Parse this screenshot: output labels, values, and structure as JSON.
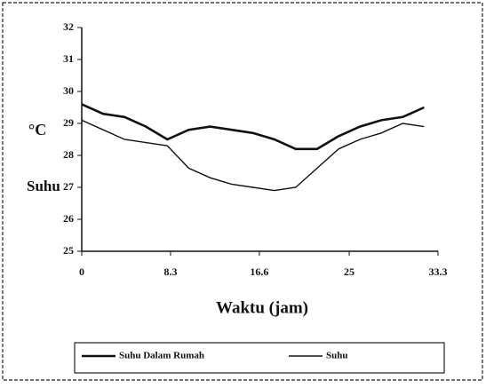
{
  "chart_data": {
    "type": "line",
    "x_label": "Waktu (jam)",
    "y_label": "Suhu",
    "y_unit": "°C",
    "x": [
      0,
      2,
      4,
      6,
      8,
      10,
      12,
      14,
      16,
      18,
      20,
      22,
      24,
      26,
      28,
      30,
      32
    ],
    "series": [
      {
        "name": "Suhu Dalam Rumah",
        "color": "#111111",
        "width": 2.6,
        "values": [
          29.6,
          29.3,
          29.2,
          28.9,
          28.5,
          28.8,
          28.9,
          28.8,
          28.7,
          28.5,
          28.2,
          28.2,
          28.6,
          28.9,
          29.1,
          29.2,
          29.5
        ]
      },
      {
        "name": "Suhu",
        "color": "#111111",
        "width": 1.4,
        "values": [
          29.1,
          28.8,
          28.5,
          28.4,
          28.3,
          27.6,
          27.3,
          27.1,
          27.0,
          26.9,
          27.0,
          27.6,
          28.2,
          28.5,
          28.7,
          29.0,
          28.9
        ]
      }
    ],
    "xlim": [
      0,
      33.3
    ],
    "xticks": [
      0,
      8.3,
      16.6,
      25,
      33.3
    ],
    "ylim": [
      25,
      32
    ],
    "yticks": [
      25,
      26,
      27,
      28,
      29,
      30,
      31,
      32
    ],
    "legend": "bottom"
  }
}
